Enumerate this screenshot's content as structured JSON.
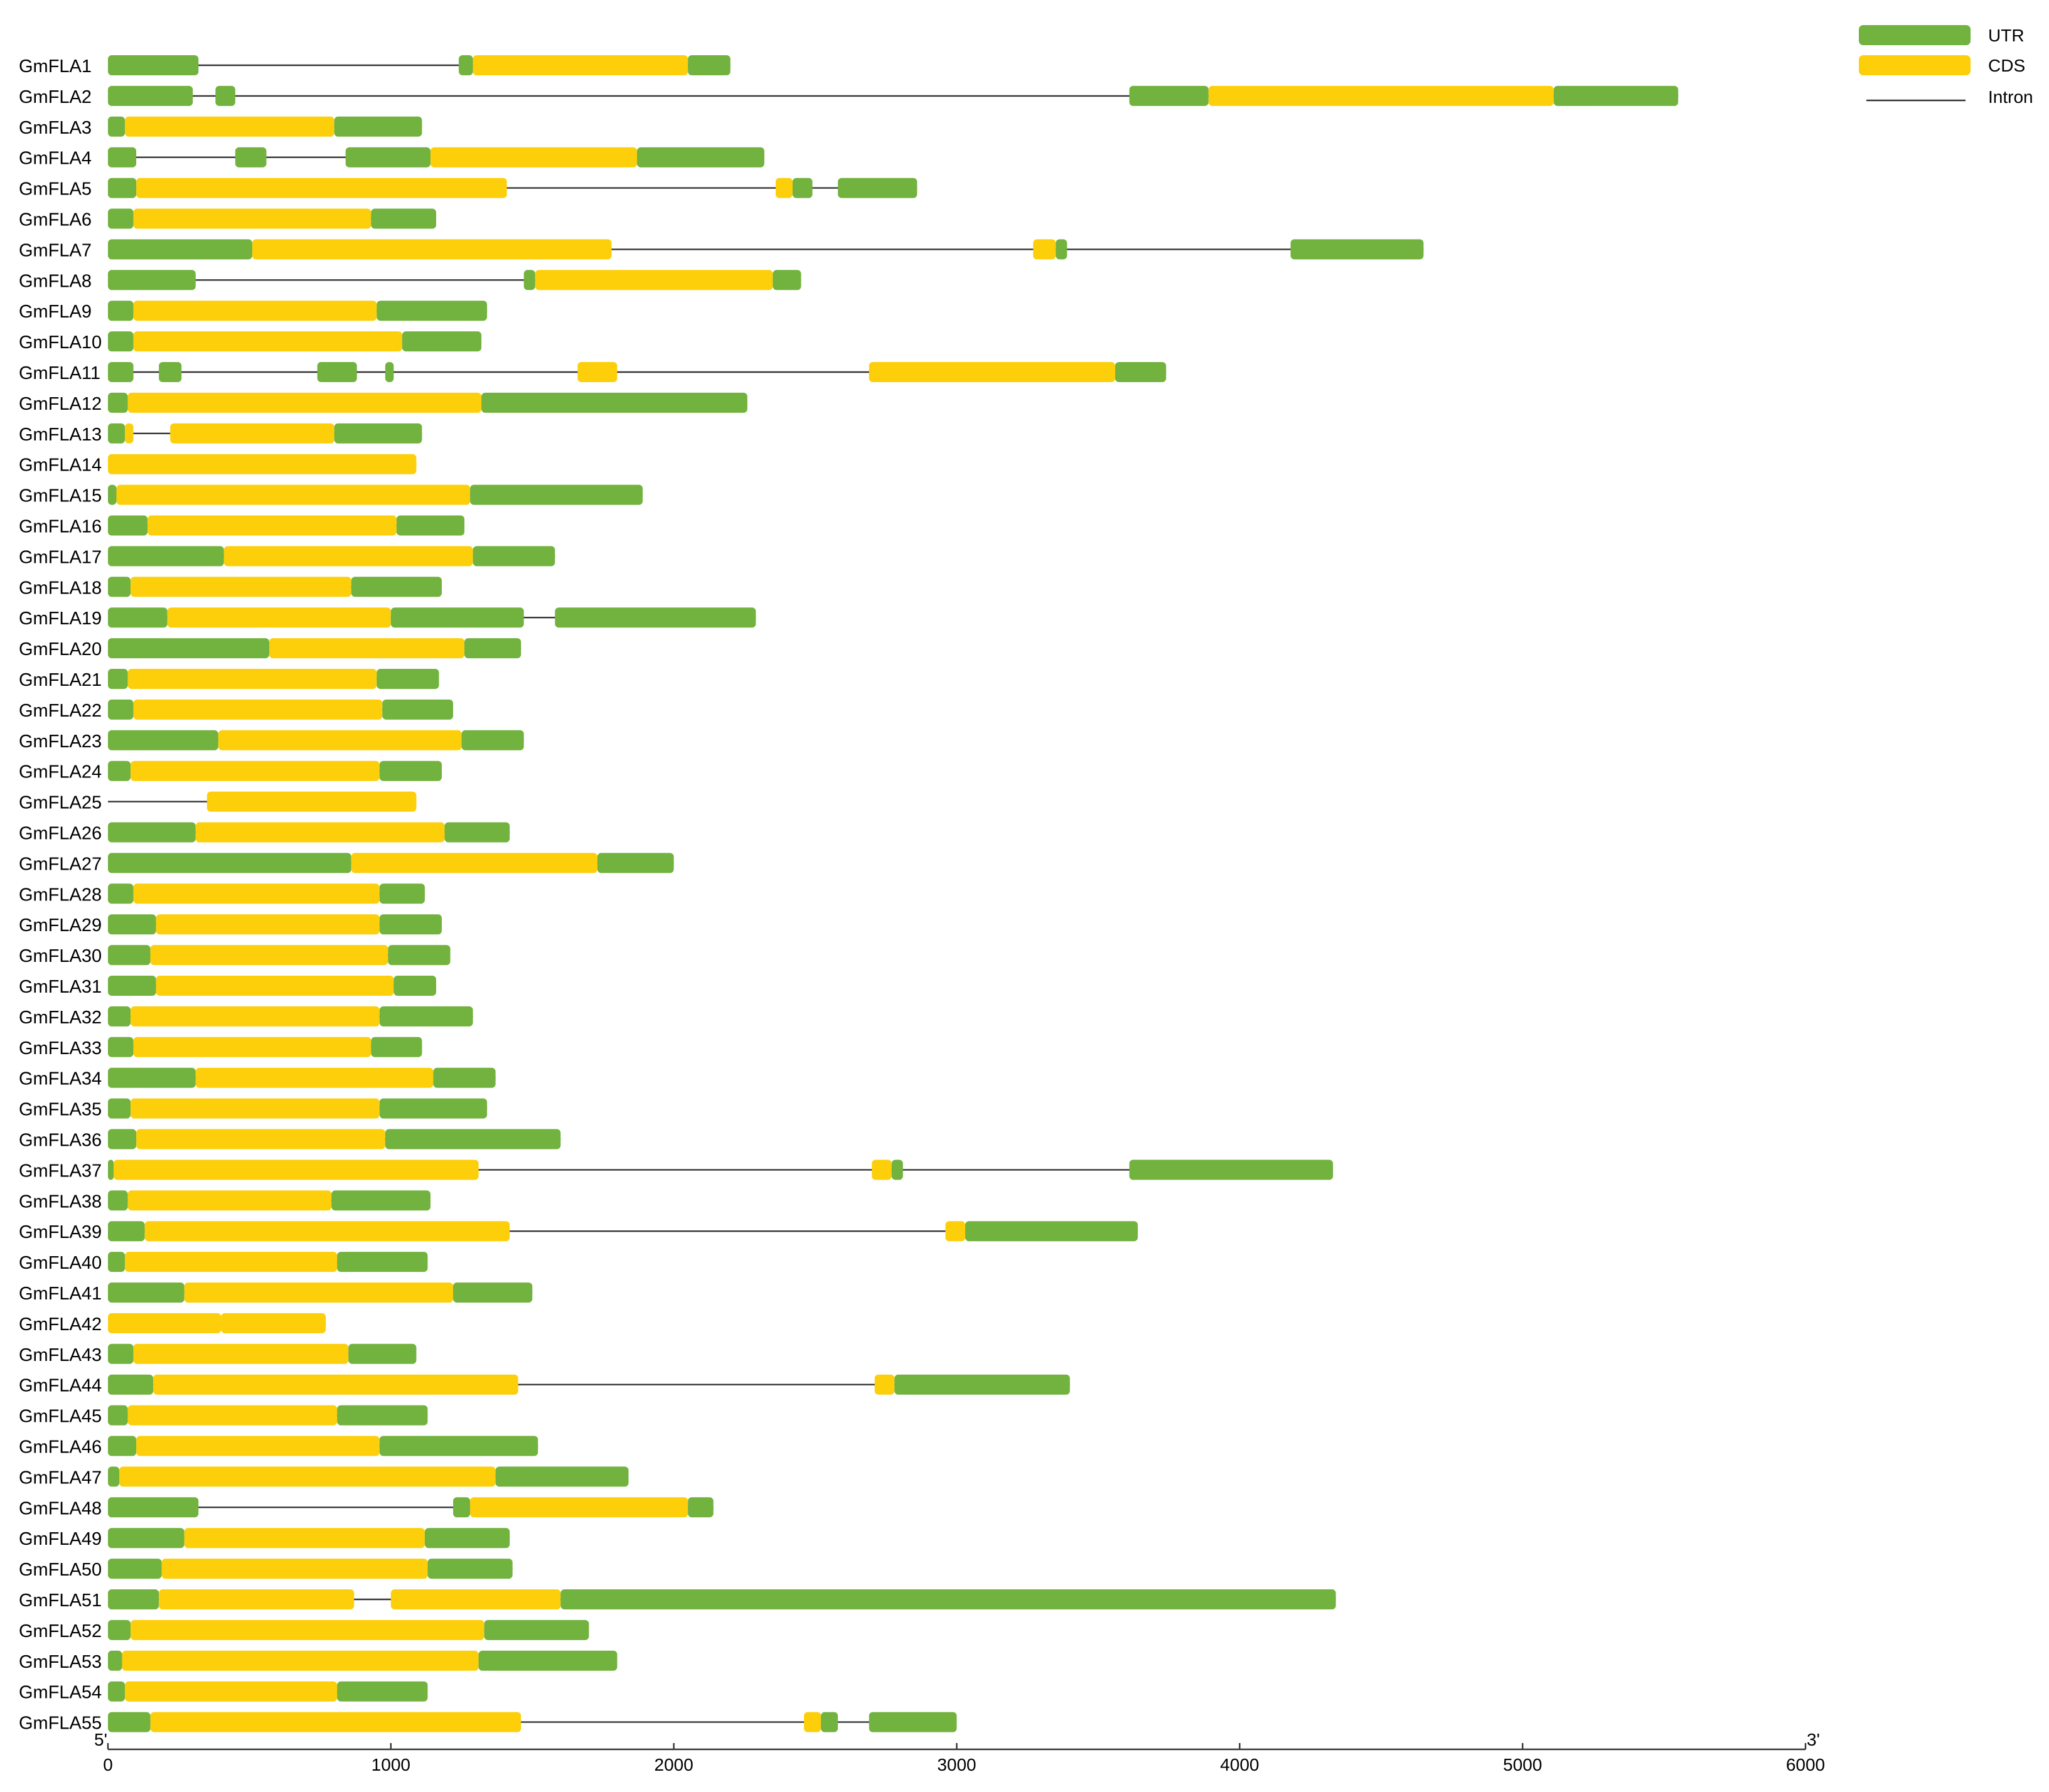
{
  "chart_data": {
    "type": "gene-structure",
    "xlim": [
      0,
      6000
    ],
    "x_ticks": [
      0,
      1000,
      2000,
      3000,
      4000,
      5000,
      6000
    ],
    "x_tick_labels": [
      "0",
      "1000",
      "2000",
      "3000",
      "4000",
      "5000",
      "6000"
    ],
    "axis_left_label": "5'",
    "axis_right_label": "3'",
    "colors": {
      "UTR": "#72b23e",
      "CDS": "#fccf0a",
      "Intron": "#333333"
    },
    "legend": [
      {
        "key": "UTR",
        "label": "UTR",
        "kind": "box"
      },
      {
        "key": "CDS",
        "label": "CDS",
        "kind": "box"
      },
      {
        "key": "Intron",
        "label": "Intron",
        "kind": "line"
      }
    ],
    "genes": [
      {
        "name": "GmFLA1",
        "segments": [
          [
            "UTR",
            0,
            320
          ],
          [
            "UTR",
            1240,
            1290
          ],
          [
            "CDS",
            1290,
            2050
          ],
          [
            "UTR",
            2050,
            2200
          ]
        ]
      },
      {
        "name": "GmFLA2",
        "segments": [
          [
            "UTR",
            0,
            300
          ],
          [
            "UTR",
            380,
            450
          ],
          [
            "UTR",
            3610,
            3890
          ],
          [
            "CDS",
            3890,
            5110
          ],
          [
            "UTR",
            5110,
            5550
          ]
        ]
      },
      {
        "name": "GmFLA3",
        "segments": [
          [
            "UTR",
            0,
            60
          ],
          [
            "CDS",
            60,
            800
          ],
          [
            "UTR",
            800,
            1110
          ]
        ]
      },
      {
        "name": "GmFLA4",
        "segments": [
          [
            "UTR",
            0,
            100
          ],
          [
            "UTR",
            450,
            560
          ],
          [
            "UTR",
            840,
            1140
          ],
          [
            "CDS",
            1140,
            1870
          ],
          [
            "UTR",
            1870,
            2320
          ]
        ]
      },
      {
        "name": "GmFLA5",
        "segments": [
          [
            "UTR",
            0,
            100
          ],
          [
            "CDS",
            100,
            1410
          ],
          [
            "CDS",
            2360,
            2420
          ],
          [
            "UTR",
            2420,
            2490
          ],
          [
            "UTR",
            2580,
            2860
          ]
        ]
      },
      {
        "name": "GmFLA6",
        "segments": [
          [
            "UTR",
            0,
            90
          ],
          [
            "CDS",
            90,
            930
          ],
          [
            "UTR",
            930,
            1160
          ]
        ]
      },
      {
        "name": "GmFLA7",
        "segments": [
          [
            "UTR",
            0,
            510
          ],
          [
            "CDS",
            510,
            1780
          ],
          [
            "CDS",
            3270,
            3350
          ],
          [
            "UTR",
            3350,
            3390
          ],
          [
            "UTR",
            4180,
            4650
          ]
        ]
      },
      {
        "name": "GmFLA8",
        "segments": [
          [
            "UTR",
            0,
            310
          ],
          [
            "UTR",
            1470,
            1510
          ],
          [
            "CDS",
            1510,
            2350
          ],
          [
            "UTR",
            2350,
            2450
          ]
        ]
      },
      {
        "name": "GmFLA9",
        "segments": [
          [
            "UTR",
            0,
            90
          ],
          [
            "CDS",
            90,
            950
          ],
          [
            "UTR",
            950,
            1340
          ]
        ]
      },
      {
        "name": "GmFLA10",
        "segments": [
          [
            "UTR",
            0,
            90
          ],
          [
            "CDS",
            90,
            1040
          ],
          [
            "UTR",
            1040,
            1320
          ]
        ]
      },
      {
        "name": "GmFLA11",
        "segments": [
          [
            "UTR",
            0,
            90
          ],
          [
            "UTR",
            180,
            260
          ],
          [
            "UTR",
            740,
            880
          ],
          [
            "UTR",
            980,
            1010
          ],
          [
            "CDS",
            1660,
            1800
          ],
          [
            "CDS",
            2690,
            3560
          ],
          [
            "UTR",
            3560,
            3740
          ]
        ]
      },
      {
        "name": "GmFLA12",
        "segments": [
          [
            "UTR",
            0,
            70
          ],
          [
            "CDS",
            70,
            1320
          ],
          [
            "UTR",
            1320,
            2260
          ]
        ]
      },
      {
        "name": "GmFLA13",
        "segments": [
          [
            "UTR",
            0,
            60
          ],
          [
            "CDS",
            60,
            90
          ],
          [
            "CDS",
            220,
            800
          ],
          [
            "UTR",
            800,
            1110
          ]
        ]
      },
      {
        "name": "GmFLA14",
        "segments": [
          [
            "CDS",
            0,
            1090
          ]
        ]
      },
      {
        "name": "GmFLA15",
        "segments": [
          [
            "UTR",
            0,
            30
          ],
          [
            "CDS",
            30,
            1280
          ],
          [
            "UTR",
            1280,
            1890
          ]
        ]
      },
      {
        "name": "GmFLA16",
        "segments": [
          [
            "UTR",
            0,
            140
          ],
          [
            "CDS",
            140,
            1020
          ],
          [
            "UTR",
            1020,
            1260
          ]
        ]
      },
      {
        "name": "GmFLA17",
        "segments": [
          [
            "UTR",
            0,
            410
          ],
          [
            "CDS",
            410,
            1290
          ],
          [
            "UTR",
            1290,
            1580
          ]
        ]
      },
      {
        "name": "GmFLA18",
        "segments": [
          [
            "UTR",
            0,
            80
          ],
          [
            "CDS",
            80,
            860
          ],
          [
            "UTR",
            860,
            1180
          ]
        ]
      },
      {
        "name": "GmFLA19",
        "segments": [
          [
            "UTR",
            0,
            210
          ],
          [
            "CDS",
            210,
            1000
          ],
          [
            "UTR",
            1000,
            1470
          ],
          [
            "UTR",
            1580,
            2290
          ]
        ]
      },
      {
        "name": "GmFLA20",
        "segments": [
          [
            "UTR",
            0,
            570
          ],
          [
            "CDS",
            570,
            1260
          ],
          [
            "UTR",
            1260,
            1460
          ]
        ]
      },
      {
        "name": "GmFLA21",
        "segments": [
          [
            "UTR",
            0,
            70
          ],
          [
            "CDS",
            70,
            950
          ],
          [
            "UTR",
            950,
            1170
          ]
        ]
      },
      {
        "name": "GmFLA22",
        "segments": [
          [
            "UTR",
            0,
            90
          ],
          [
            "CDS",
            90,
            970
          ],
          [
            "UTR",
            970,
            1220
          ]
        ]
      },
      {
        "name": "GmFLA23",
        "segments": [
          [
            "UTR",
            0,
            390
          ],
          [
            "CDS",
            390,
            1250
          ],
          [
            "UTR",
            1250,
            1470
          ]
        ]
      },
      {
        "name": "GmFLA24",
        "segments": [
          [
            "UTR",
            0,
            80
          ],
          [
            "CDS",
            80,
            960
          ],
          [
            "UTR",
            960,
            1180
          ]
        ]
      },
      {
        "name": "GmFLA25",
        "segments": [
          [
            "CDS",
            350,
            1090
          ]
        ]
      },
      {
        "name": "GmFLA26",
        "segments": [
          [
            "UTR",
            0,
            310
          ],
          [
            "CDS",
            310,
            1190
          ],
          [
            "UTR",
            1190,
            1420
          ]
        ]
      },
      {
        "name": "GmFLA27",
        "segments": [
          [
            "UTR",
            0,
            860
          ],
          [
            "CDS",
            860,
            1730
          ],
          [
            "UTR",
            1730,
            2000
          ]
        ]
      },
      {
        "name": "GmFLA28",
        "segments": [
          [
            "UTR",
            0,
            90
          ],
          [
            "CDS",
            90,
            960
          ],
          [
            "UTR",
            960,
            1120
          ]
        ]
      },
      {
        "name": "GmFLA29",
        "segments": [
          [
            "UTR",
            0,
            170
          ],
          [
            "CDS",
            170,
            960
          ],
          [
            "UTR",
            960,
            1180
          ]
        ]
      },
      {
        "name": "GmFLA30",
        "segments": [
          [
            "UTR",
            0,
            150
          ],
          [
            "CDS",
            150,
            990
          ],
          [
            "UTR",
            990,
            1210
          ]
        ]
      },
      {
        "name": "GmFLA31",
        "segments": [
          [
            "UTR",
            0,
            170
          ],
          [
            "CDS",
            170,
            1010
          ],
          [
            "UTR",
            1010,
            1160
          ]
        ]
      },
      {
        "name": "GmFLA32",
        "segments": [
          [
            "UTR",
            0,
            80
          ],
          [
            "CDS",
            80,
            960
          ],
          [
            "UTR",
            960,
            1290
          ]
        ]
      },
      {
        "name": "GmFLA33",
        "segments": [
          [
            "UTR",
            0,
            90
          ],
          [
            "CDS",
            90,
            930
          ],
          [
            "UTR",
            930,
            1110
          ]
        ]
      },
      {
        "name": "GmFLA34",
        "segments": [
          [
            "UTR",
            0,
            310
          ],
          [
            "CDS",
            310,
            1150
          ],
          [
            "UTR",
            1150,
            1370
          ]
        ]
      },
      {
        "name": "GmFLA35",
        "segments": [
          [
            "UTR",
            0,
            80
          ],
          [
            "CDS",
            80,
            960
          ],
          [
            "UTR",
            960,
            1340
          ]
        ]
      },
      {
        "name": "GmFLA36",
        "segments": [
          [
            "UTR",
            0,
            100
          ],
          [
            "CDS",
            100,
            980
          ],
          [
            "UTR",
            980,
            1600
          ]
        ]
      },
      {
        "name": "GmFLA37",
        "segments": [
          [
            "UTR",
            0,
            20
          ],
          [
            "CDS",
            20,
            1310
          ],
          [
            "CDS",
            2700,
            2770
          ],
          [
            "UTR",
            2770,
            2810
          ],
          [
            "UTR",
            3610,
            4330
          ]
        ]
      },
      {
        "name": "GmFLA38",
        "segments": [
          [
            "UTR",
            0,
            70
          ],
          [
            "CDS",
            70,
            790
          ],
          [
            "UTR",
            790,
            1140
          ]
        ]
      },
      {
        "name": "GmFLA39",
        "segments": [
          [
            "UTR",
            0,
            130
          ],
          [
            "CDS",
            130,
            1420
          ],
          [
            "CDS",
            2960,
            3030
          ],
          [
            "UTR",
            3030,
            3640
          ]
        ]
      },
      {
        "name": "GmFLA40",
        "segments": [
          [
            "UTR",
            0,
            60
          ],
          [
            "CDS",
            60,
            810
          ],
          [
            "UTR",
            810,
            1130
          ]
        ]
      },
      {
        "name": "GmFLA41",
        "segments": [
          [
            "UTR",
            0,
            270
          ],
          [
            "CDS",
            270,
            1220
          ],
          [
            "UTR",
            1220,
            1500
          ]
        ]
      },
      {
        "name": "GmFLA42",
        "segments": [
          [
            "CDS",
            0,
            400
          ],
          [
            "CDS",
            400,
            770
          ]
        ]
      },
      {
        "name": "GmFLA43",
        "segments": [
          [
            "UTR",
            0,
            90
          ],
          [
            "CDS",
            90,
            850
          ],
          [
            "UTR",
            850,
            1090
          ]
        ]
      },
      {
        "name": "GmFLA44",
        "segments": [
          [
            "UTR",
            0,
            160
          ],
          [
            "CDS",
            160,
            1450
          ],
          [
            "CDS",
            2710,
            2780
          ],
          [
            "UTR",
            2780,
            3400
          ]
        ]
      },
      {
        "name": "GmFLA45",
        "segments": [
          [
            "UTR",
            0,
            70
          ],
          [
            "CDS",
            70,
            810
          ],
          [
            "UTR",
            810,
            1130
          ]
        ]
      },
      {
        "name": "GmFLA46",
        "segments": [
          [
            "UTR",
            0,
            100
          ],
          [
            "CDS",
            100,
            960
          ],
          [
            "UTR",
            960,
            1520
          ]
        ]
      },
      {
        "name": "GmFLA47",
        "segments": [
          [
            "UTR",
            0,
            40
          ],
          [
            "CDS",
            40,
            1370
          ],
          [
            "UTR",
            1370,
            1840
          ]
        ]
      },
      {
        "name": "GmFLA48",
        "segments": [
          [
            "UTR",
            0,
            320
          ],
          [
            "UTR",
            1220,
            1280
          ],
          [
            "CDS",
            1280,
            2050
          ],
          [
            "UTR",
            2050,
            2140
          ]
        ]
      },
      {
        "name": "GmFLA49",
        "segments": [
          [
            "UTR",
            0,
            270
          ],
          [
            "CDS",
            270,
            1120
          ],
          [
            "UTR",
            1120,
            1420
          ]
        ]
      },
      {
        "name": "GmFLA50",
        "segments": [
          [
            "UTR",
            0,
            190
          ],
          [
            "CDS",
            190,
            1130
          ],
          [
            "UTR",
            1130,
            1430
          ]
        ]
      },
      {
        "name": "GmFLA51",
        "segments": [
          [
            "UTR",
            0,
            180
          ],
          [
            "CDS",
            180,
            870
          ],
          [
            "CDS",
            1000,
            1600
          ],
          [
            "UTR",
            1600,
            4340
          ]
        ]
      },
      {
        "name": "GmFLA52",
        "segments": [
          [
            "UTR",
            0,
            80
          ],
          [
            "CDS",
            80,
            1330
          ],
          [
            "UTR",
            1330,
            1700
          ]
        ]
      },
      {
        "name": "GmFLA53",
        "segments": [
          [
            "UTR",
            0,
            50
          ],
          [
            "CDS",
            50,
            1310
          ],
          [
            "UTR",
            1310,
            1800
          ]
        ]
      },
      {
        "name": "GmFLA54",
        "segments": [
          [
            "UTR",
            0,
            60
          ],
          [
            "CDS",
            60,
            810
          ],
          [
            "UTR",
            810,
            1130
          ]
        ]
      },
      {
        "name": "GmFLA55",
        "segments": [
          [
            "UTR",
            0,
            150
          ],
          [
            "CDS",
            150,
            1460
          ],
          [
            "CDS",
            2460,
            2520
          ],
          [
            "UTR",
            2520,
            2580
          ],
          [
            "UTR",
            2690,
            3000
          ]
        ]
      }
    ]
  }
}
